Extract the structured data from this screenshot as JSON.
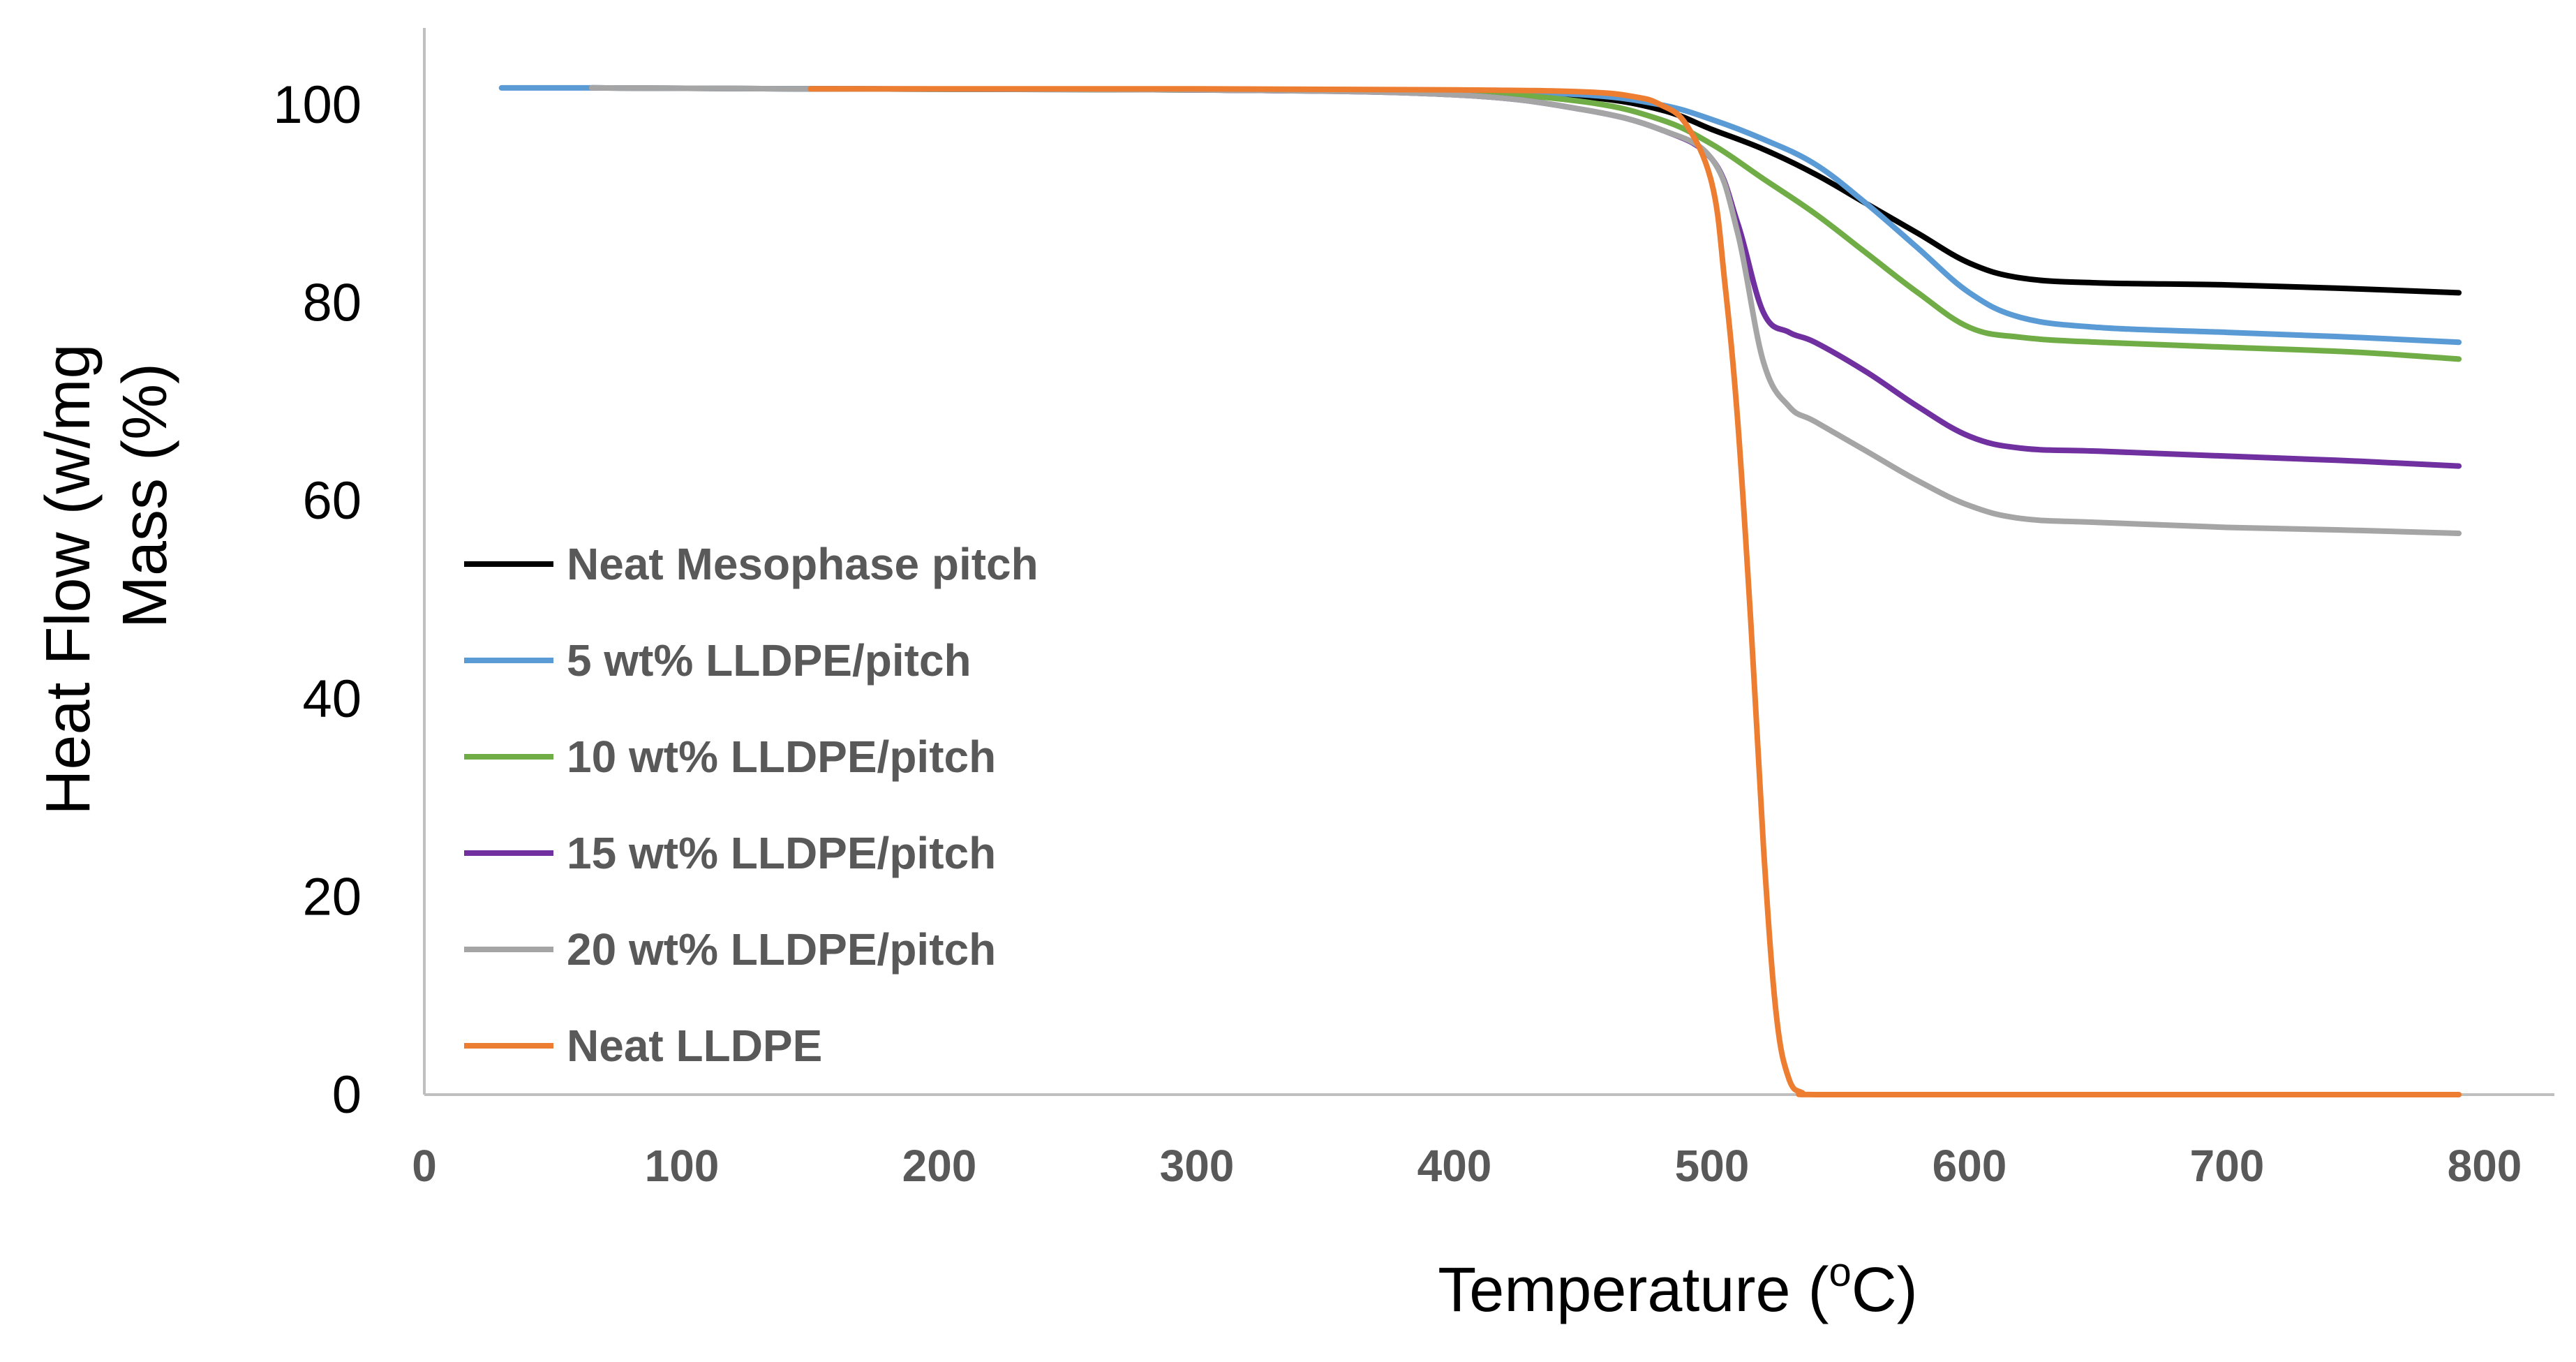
{
  "chart_data": {
    "type": "line",
    "title": "",
    "xlabel": "Temperature (",
    "xlabel_sup": "o",
    "xlabel_suffix": "C)",
    "ylabel_lines": [
      "Heat Flow (w/mg",
      "Mass (%)"
    ],
    "xlim": [
      0,
      800
    ],
    "ylim": [
      0,
      100
    ],
    "x_ticks": [
      "0",
      "100",
      "200",
      "300",
      "400",
      "500",
      "600",
      "700",
      "800"
    ],
    "y_ticks": [
      "0",
      "20",
      "40",
      "60",
      "80",
      "100"
    ],
    "grid": false,
    "legend_position": "left",
    "series": [
      {
        "name": "Neat Mesophase pitch",
        "color": "#000000",
        "x": [
          65,
          150,
          300,
          400,
          450,
          480,
          500,
          520,
          540,
          560,
          580,
          600,
          620,
          650,
          700,
          750,
          790
        ],
        "y": [
          101.7,
          101.6,
          101.5,
          101.3,
          100.8,
          99.5,
          97.5,
          95.5,
          93,
          90,
          87,
          84,
          82.5,
          82,
          81.8,
          81.4,
          81
        ]
      },
      {
        "name": "5 wt% LLDPE/pitch",
        "color": "#5B9BD5",
        "x": [
          30,
          65,
          150,
          300,
          400,
          450,
          480,
          500,
          520,
          540,
          560,
          580,
          600,
          620,
          650,
          700,
          750,
          790
        ],
        "y": [
          101.7,
          101.7,
          101.6,
          101.5,
          101.3,
          101,
          100,
          98.5,
          96.5,
          94,
          90,
          85.5,
          81,
          78.5,
          77.5,
          77,
          76.5,
          76
        ]
      },
      {
        "name": "10 wt% LLDPE/pitch",
        "color": "#70AD47",
        "x": [
          150,
          300,
          400,
          450,
          480,
          500,
          520,
          540,
          560,
          580,
          600,
          620,
          650,
          700,
          750,
          790
        ],
        "y": [
          101.6,
          101.5,
          101.2,
          100.3,
          98.5,
          96,
          92.5,
          89,
          85,
          81,
          77.5,
          76.5,
          76,
          75.5,
          75,
          74.3
        ]
      },
      {
        "name": "15 wt% LLDPE/pitch",
        "color": "#7030A0",
        "x": [
          150,
          300,
          400,
          450,
          480,
          500,
          510,
          520,
          530,
          540,
          560,
          580,
          600,
          620,
          650,
          700,
          750,
          790
        ],
        "y": [
          101.6,
          101.5,
          101,
          99.5,
          97.5,
          94.5,
          88,
          79,
          77,
          76,
          73,
          69.5,
          66.5,
          65.3,
          65,
          64.5,
          64,
          63.5
        ]
      },
      {
        "name": "20 wt% LLDPE/pitch",
        "color": "#A5A5A5",
        "x": [
          65,
          150,
          300,
          400,
          450,
          480,
          500,
          510,
          520,
          530,
          540,
          560,
          580,
          600,
          620,
          650,
          700,
          750,
          790
        ],
        "y": [
          101.7,
          101.6,
          101.5,
          101,
          99.5,
          97.5,
          94.5,
          87,
          74,
          69.5,
          68,
          65,
          62,
          59.5,
          58.2,
          57.8,
          57.3,
          57,
          56.7
        ]
      },
      {
        "name": "Neat LLDPE",
        "color": "#ED7D31",
        "x": [
          150,
          300,
          400,
          450,
          470,
          480,
          490,
          500,
          505,
          510,
          515,
          520,
          525,
          530,
          535,
          540,
          600,
          700,
          790
        ],
        "y": [
          101.6,
          101.6,
          101.5,
          101.3,
          100.8,
          100,
          98,
          92,
          82,
          68,
          48,
          25,
          8,
          1.5,
          0.2,
          0,
          0,
          0,
          0
        ]
      }
    ]
  }
}
